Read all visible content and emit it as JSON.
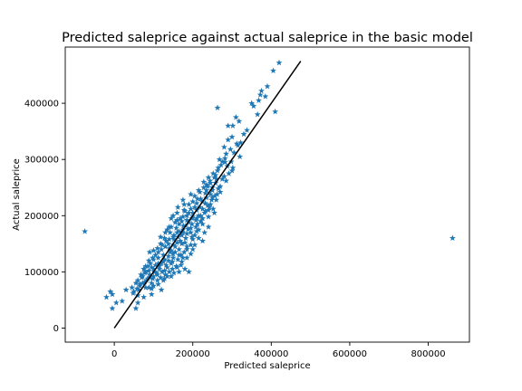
{
  "chart_data": {
    "type": "scatter",
    "title": "Predicted saleprice against actual saleprice in the basic model",
    "xlabel": "Predicted saleprice",
    "ylabel": "Actual saleprice",
    "xlim": [
      -125000,
      905000
    ],
    "ylim": [
      -25000,
      500000
    ],
    "xticks": [
      0,
      200000,
      400000,
      600000,
      800000
    ],
    "xtick_labels": [
      "0",
      "200000",
      "400000",
      "600000",
      "800000"
    ],
    "yticks": [
      0,
      100000,
      200000,
      300000,
      400000
    ],
    "ytick_labels": [
      "0",
      "100000",
      "200000",
      "300000",
      "400000"
    ],
    "grid": false,
    "marker": "star",
    "colors": {
      "points": "#1f77b4",
      "reference_line": "#000000",
      "axes": "#000000"
    },
    "reference_line": {
      "x": [
        0,
        475000
      ],
      "y": [
        0,
        475000
      ]
    },
    "series": [
      {
        "points": [
          [
            -75000,
            172000
          ],
          [
            862000,
            160000
          ],
          [
            420000,
            472000
          ],
          [
            405000,
            458000
          ],
          [
            390000,
            430000
          ],
          [
            375000,
            422000
          ],
          [
            385000,
            412000
          ],
          [
            368000,
            405000
          ],
          [
            350000,
            400000
          ],
          [
            410000,
            385000
          ],
          [
            365000,
            380000
          ],
          [
            263000,
            392000
          ],
          [
            310000,
            375000
          ],
          [
            318000,
            368000
          ],
          [
            302000,
            360000
          ],
          [
            290000,
            360000
          ],
          [
            330000,
            345000
          ],
          [
            300000,
            340000
          ],
          [
            290000,
            335000
          ],
          [
            322000,
            330000
          ],
          [
            315000,
            325000
          ],
          [
            280000,
            322000
          ],
          [
            296000,
            318000
          ],
          [
            305000,
            312000
          ],
          [
            282000,
            302000
          ],
          [
            298000,
            296000
          ],
          [
            275000,
            296000
          ],
          [
            288000,
            288000
          ],
          [
            302000,
            285000
          ],
          [
            300000,
            280000
          ],
          [
            263000,
            280000
          ],
          [
            255000,
            268000
          ],
          [
            275000,
            265000
          ],
          [
            244000,
            262000
          ],
          [
            258000,
            258000
          ],
          [
            265000,
            248000
          ],
          [
            250000,
            245000
          ],
          [
            238000,
            252000
          ],
          [
            228000,
            250000
          ],
          [
            218000,
            242000
          ],
          [
            235000,
            232000
          ],
          [
            224000,
            225000
          ],
          [
            212000,
            230000
          ],
          [
            200000,
            225000
          ],
          [
            245000,
            220000
          ],
          [
            252000,
            212000
          ],
          [
            240000,
            210000
          ],
          [
            255000,
            205000
          ],
          [
            230000,
            205000
          ],
          [
            218000,
            215000
          ],
          [
            205000,
            215000
          ],
          [
            195000,
            212000
          ],
          [
            178000,
            220000
          ],
          [
            162000,
            215000
          ],
          [
            180000,
            208000
          ],
          [
            185000,
            200000
          ],
          [
            175000,
            198000
          ],
          [
            198000,
            195000
          ],
          [
            210000,
            195000
          ],
          [
            190000,
            188000
          ],
          [
            172000,
            190000
          ],
          [
            160000,
            192000
          ],
          [
            150000,
            200000
          ],
          [
            165000,
            185000
          ],
          [
            182000,
            182000
          ],
          [
            195000,
            178000
          ],
          [
            175000,
            175000
          ],
          [
            158000,
            178000
          ],
          [
            145000,
            180000
          ],
          [
            135000,
            175000
          ],
          [
            160000,
            170000
          ],
          [
            172000,
            165000
          ],
          [
            185000,
            168000
          ],
          [
            205000,
            165000
          ],
          [
            150000,
            162000
          ],
          [
            140000,
            158000
          ],
          [
            128000,
            160000
          ],
          [
            118000,
            162000
          ],
          [
            138000,
            150000
          ],
          [
            150000,
            148000
          ],
          [
            160000,
            152000
          ],
          [
            172000,
            150000
          ],
          [
            185000,
            145000
          ],
          [
            195000,
            148000
          ],
          [
            130000,
            145000
          ],
          [
            120000,
            140000
          ],
          [
            110000,
            142000
          ],
          [
            145000,
            138000
          ],
          [
            155000,
            135000
          ],
          [
            165000,
            140000
          ],
          [
            178000,
            135000
          ],
          [
            100000,
            138000
          ],
          [
            90000,
            135000
          ],
          [
            125000,
            130000
          ],
          [
            138000,
            128000
          ],
          [
            150000,
            125000
          ],
          [
            162000,
            122000
          ],
          [
            175000,
            125000
          ],
          [
            112000,
            125000
          ],
          [
            100000,
            122000
          ],
          [
            88000,
            120000
          ],
          [
            120000,
            115000
          ],
          [
            132000,
            112000
          ],
          [
            145000,
            115000
          ],
          [
            158000,
            110000
          ],
          [
            170000,
            112000
          ],
          [
            105000,
            112000
          ],
          [
            95000,
            108000
          ],
          [
            80000,
            110000
          ],
          [
            115000,
            105000
          ],
          [
            128000,
            102000
          ],
          [
            140000,
            100000
          ],
          [
            152000,
            98000
          ],
          [
            165000,
            100000
          ],
          [
            180000,
            105000
          ],
          [
            108000,
            98000
          ],
          [
            90000,
            95000
          ],
          [
            78000,
            98000
          ],
          [
            100000,
            92000
          ],
          [
            118000,
            90000
          ],
          [
            130000,
            95000
          ],
          [
            145000,
            92000
          ],
          [
            190000,
            100000
          ],
          [
            85000,
            88000
          ],
          [
            70000,
            90000
          ],
          [
            60000,
            85000
          ],
          [
            78000,
            82000
          ],
          [
            95000,
            80000
          ],
          [
            110000,
            85000
          ],
          [
            128000,
            88000
          ],
          [
            55000,
            80000
          ],
          [
            65000,
            75000
          ],
          [
            80000,
            72000
          ],
          [
            95000,
            70000
          ],
          [
            120000,
            68000
          ],
          [
            45000,
            72000
          ],
          [
            30000,
            68000
          ],
          [
            48000,
            62000
          ],
          [
            60000,
            58000
          ],
          [
            75000,
            55000
          ],
          [
            95000,
            60000
          ],
          [
            -10000,
            65000
          ],
          [
            -5000,
            60000
          ],
          [
            5000,
            45000
          ],
          [
            -20000,
            55000
          ],
          [
            60000,
            45000
          ],
          [
            20000,
            48000
          ],
          [
            -5000,
            35000
          ],
          [
            55000,
            35000
          ],
          [
            140000,
            180000
          ],
          [
            155000,
            188000
          ],
          [
            168000,
            195000
          ],
          [
            185000,
            192000
          ],
          [
            200000,
            205000
          ],
          [
            215000,
            200000
          ],
          [
            225000,
            212000
          ],
          [
            238000,
            218000
          ],
          [
            248000,
            228000
          ],
          [
            262000,
            238000
          ],
          [
            270000,
            252000
          ],
          [
            280000,
            270000
          ],
          [
            292000,
            275000
          ],
          [
            232000,
            240000
          ],
          [
            220000,
            190000
          ],
          [
            208000,
            180000
          ],
          [
            195000,
            170000
          ],
          [
            182000,
            160000
          ],
          [
            168000,
            155000
          ],
          [
            155000,
            145000
          ],
          [
            142000,
            135000
          ],
          [
            128000,
            122000
          ],
          [
            115000,
            110000
          ],
          [
            102000,
            100000
          ],
          [
            88000,
            102000
          ],
          [
            72000,
            80000
          ],
          [
            62000,
            68000
          ],
          [
            210000,
            172000
          ],
          [
            225000,
            185000
          ],
          [
            240000,
            198000
          ],
          [
            178000,
            210000
          ],
          [
            190000,
            220000
          ],
          [
            205000,
            235000
          ],
          [
            215000,
            245000
          ],
          [
            228000,
            260000
          ],
          [
            240000,
            268000
          ],
          [
            252000,
            275000
          ],
          [
            265000,
            285000
          ],
          [
            170000,
            130000
          ],
          [
            185000,
            140000
          ],
          [
            200000,
            158000
          ],
          [
            135000,
            108000
          ],
          [
            148000,
            118000
          ],
          [
            122000,
            100000
          ],
          [
            110000,
            95000
          ],
          [
            98000,
            88000
          ],
          [
            160000,
            205000
          ],
          [
            145000,
            195000
          ],
          [
            130000,
            170000
          ],
          [
            118000,
            150000
          ],
          [
            105000,
            130000
          ],
          [
            92000,
            115000
          ],
          [
            80000,
            100000
          ],
          [
            68000,
            95000
          ],
          [
            175000,
            228000
          ],
          [
            195000,
            238000
          ],
          [
            210000,
            222000
          ],
          [
            235000,
            255000
          ],
          [
            250000,
            250000
          ],
          [
            260000,
            265000
          ],
          [
            268000,
            300000
          ],
          [
            285000,
            310000
          ],
          [
            225000,
            155000
          ],
          [
            215000,
            160000
          ],
          [
            200000,
            140000
          ],
          [
            185000,
            125000
          ],
          [
            172000,
            118000
          ],
          [
            160000,
            108000
          ],
          [
            148000,
            105000
          ],
          [
            135000,
            92000
          ],
          [
            125000,
            85000
          ],
          [
            112000,
            78000
          ],
          [
            100000,
            75000
          ],
          [
            88000,
            72000
          ],
          [
            240000,
            180000
          ],
          [
            230000,
            170000
          ],
          [
            212000,
            185000
          ],
          [
            198000,
            162000
          ],
          [
            180000,
            152000
          ],
          [
            165000,
            130000
          ],
          [
            150000,
            132000
          ],
          [
            138000,
            120000
          ],
          [
            125000,
            118000
          ],
          [
            112000,
            115000
          ],
          [
            100000,
            105000
          ],
          [
            90000,
            90000
          ],
          [
            82000,
            85000
          ],
          [
            72000,
            92000
          ],
          [
            65000,
            78000
          ],
          [
            58000,
            70000
          ],
          [
            50000,
            65000
          ],
          [
            270000,
            242000
          ],
          [
            285000,
            262000
          ],
          [
            256000,
            235000
          ],
          [
            245000,
            238000
          ],
          [
            232000,
            222000
          ],
          [
            220000,
            230000
          ],
          [
            210000,
            210000
          ],
          [
            200000,
            198000
          ],
          [
            190000,
            205000
          ],
          [
            176000,
            182000
          ],
          [
            165000,
            172000
          ],
          [
            152000,
            165000
          ],
          [
            142000,
            170000
          ],
          [
            132000,
            155000
          ],
          [
            122000,
            148000
          ],
          [
            112000,
            135000
          ],
          [
            98000,
            125000
          ],
          [
            85000,
            110000
          ],
          [
            75000,
            105000
          ],
          [
            140000,
            142000
          ],
          [
            152000,
            158000
          ],
          [
            162000,
            162000
          ],
          [
            175000,
            170000
          ],
          [
            188000,
            176000
          ],
          [
            198000,
            185000
          ],
          [
            208000,
            192000
          ],
          [
            220000,
            200000
          ],
          [
            232000,
            208000
          ],
          [
            242000,
            215000
          ],
          [
            250000,
            232000
          ],
          [
            260000,
            228000
          ],
          [
            195000,
            132000
          ],
          [
            205000,
            148000
          ],
          [
            215000,
            175000
          ],
          [
            225000,
            195000
          ],
          [
            235000,
            245000
          ],
          [
            245000,
            258000
          ],
          [
            258000,
            272000
          ],
          [
            272000,
            290000
          ],
          [
            282000,
            295000
          ],
          [
            320000,
            305000
          ],
          [
            312000,
            328000
          ],
          [
            338000,
            352000
          ],
          [
            355000,
            395000
          ],
          [
            372000,
            415000
          ]
        ]
      }
    ]
  }
}
